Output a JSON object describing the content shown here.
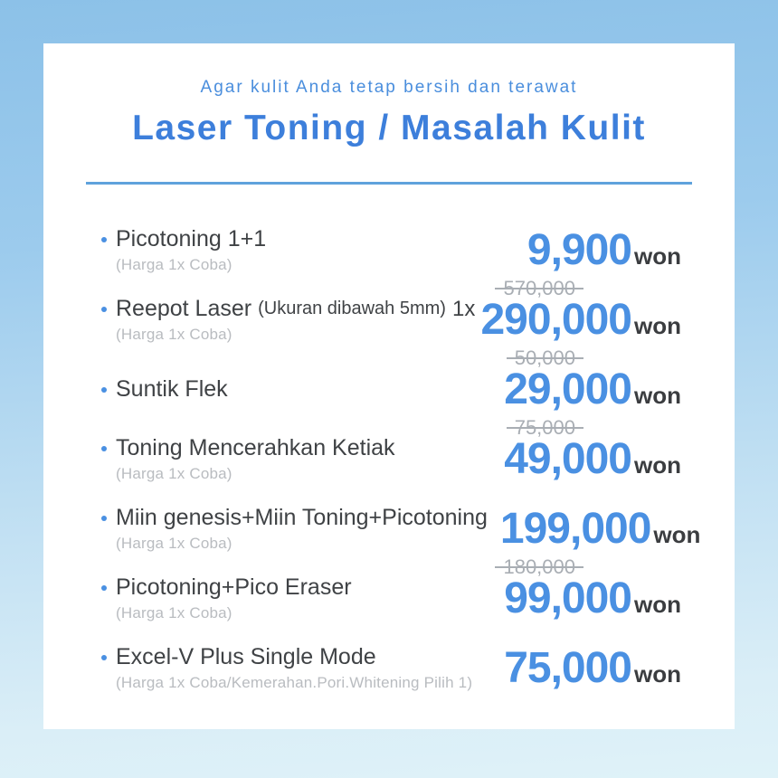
{
  "header": {
    "subtitle": "Agar kulit Anda tetap bersih dan terawat",
    "title": "Laser Toning / Masalah Kulit"
  },
  "pricing": {
    "currency_suffix": "won"
  },
  "colors": {
    "accent_blue": "#4a90e2",
    "title_blue": "#3d7fdb",
    "divider_blue": "#5fa2dc",
    "label_gray": "#3f4245",
    "sub_gray": "#b9bcc0",
    "old_price_gray": "#a9aeb4",
    "won_dark": "#3b3d40",
    "background_top": "#8cc1e8",
    "background_bottom": "#dff2f8",
    "card_white": "#ffffff"
  },
  "items": [
    {
      "name": "Picotoning 1+1",
      "note": "",
      "suffix": "",
      "sub": "(Harga 1x Coba)",
      "old_price": "",
      "price": "9,900"
    },
    {
      "name": "Reepot Laser",
      "note": "(Ukuran dibawah 5mm)",
      "suffix": "1x",
      "sub": "(Harga 1x Coba)",
      "old_price": "570,000",
      "price": "290,000"
    },
    {
      "name": "Suntik Flek",
      "note": "",
      "suffix": "",
      "sub": "",
      "old_price": "50,000",
      "price": "29,000"
    },
    {
      "name": "Toning Mencerahkan Ketiak",
      "note": "",
      "suffix": "",
      "sub": "(Harga 1x Coba)",
      "old_price": "75,000",
      "price": "49,000"
    },
    {
      "name": "Miin genesis+Miin Toning+Picotoning",
      "note": "",
      "suffix": "",
      "sub": "(Harga 1x Coba)",
      "old_price": "",
      "price": "199,000"
    },
    {
      "name": "Picotoning+Pico Eraser",
      "note": "",
      "suffix": "",
      "sub": "(Harga 1x Coba)",
      "old_price": "180,000",
      "price": "99,000"
    },
    {
      "name": "Excel-V Plus Single Mode",
      "note": "",
      "suffix": "",
      "sub": "(Harga 1x Coba/Kemerahan.Pori.Whitening Pilih 1)",
      "old_price": "",
      "price": "75,000"
    }
  ]
}
